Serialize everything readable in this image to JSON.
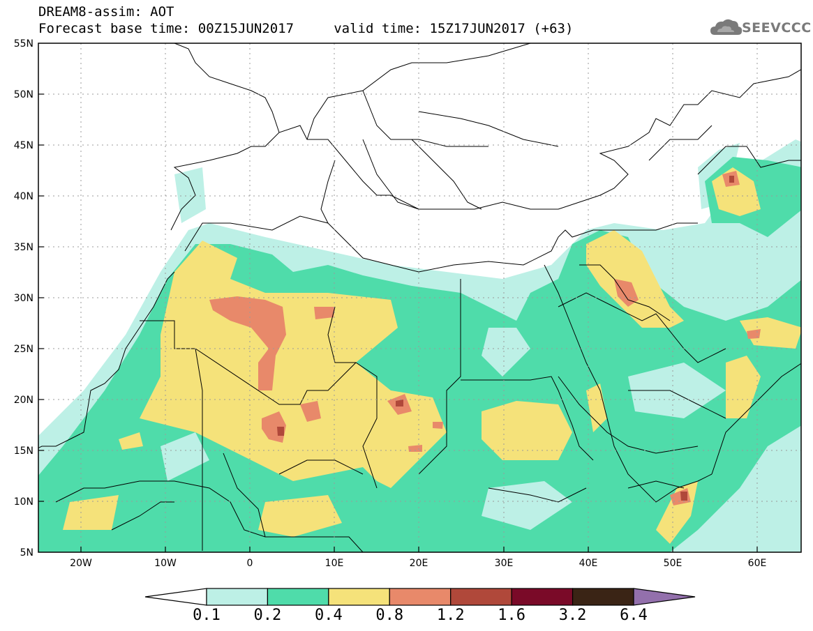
{
  "header": {
    "line1": "DREAM8-assim: AOT",
    "line2": "Forecast base time: 00Z15JUN2017     valid time: 15Z17JUN2017 (+63)",
    "logo_text": "SEEVCCC",
    "logo_icon": "cloud-logo-icon"
  },
  "map": {
    "variable": "AOT",
    "lon_range": [
      -25,
      65
    ],
    "lat_range": [
      5,
      55
    ],
    "lon_ticks": [
      "20W",
      "10W",
      "0",
      "10E",
      "20E",
      "30E",
      "40E",
      "50E",
      "60E"
    ],
    "lat_ticks": [
      "55N",
      "50N",
      "45N",
      "40N",
      "35N",
      "30N",
      "25N",
      "20N",
      "15N",
      "10N",
      "5N"
    ],
    "grid": true
  },
  "legend": {
    "labels": [
      "0.1",
      "0.2",
      "0.4",
      "0.8",
      "1.2",
      "1.6",
      "3.2",
      "6.4"
    ],
    "colors": [
      "#ffffff",
      "#bdf0e6",
      "#4fdcaa",
      "#f5e27a",
      "#e8896a",
      "#b0483a",
      "#7a0a28",
      "#3a2415",
      "#9370ac"
    ]
  }
}
